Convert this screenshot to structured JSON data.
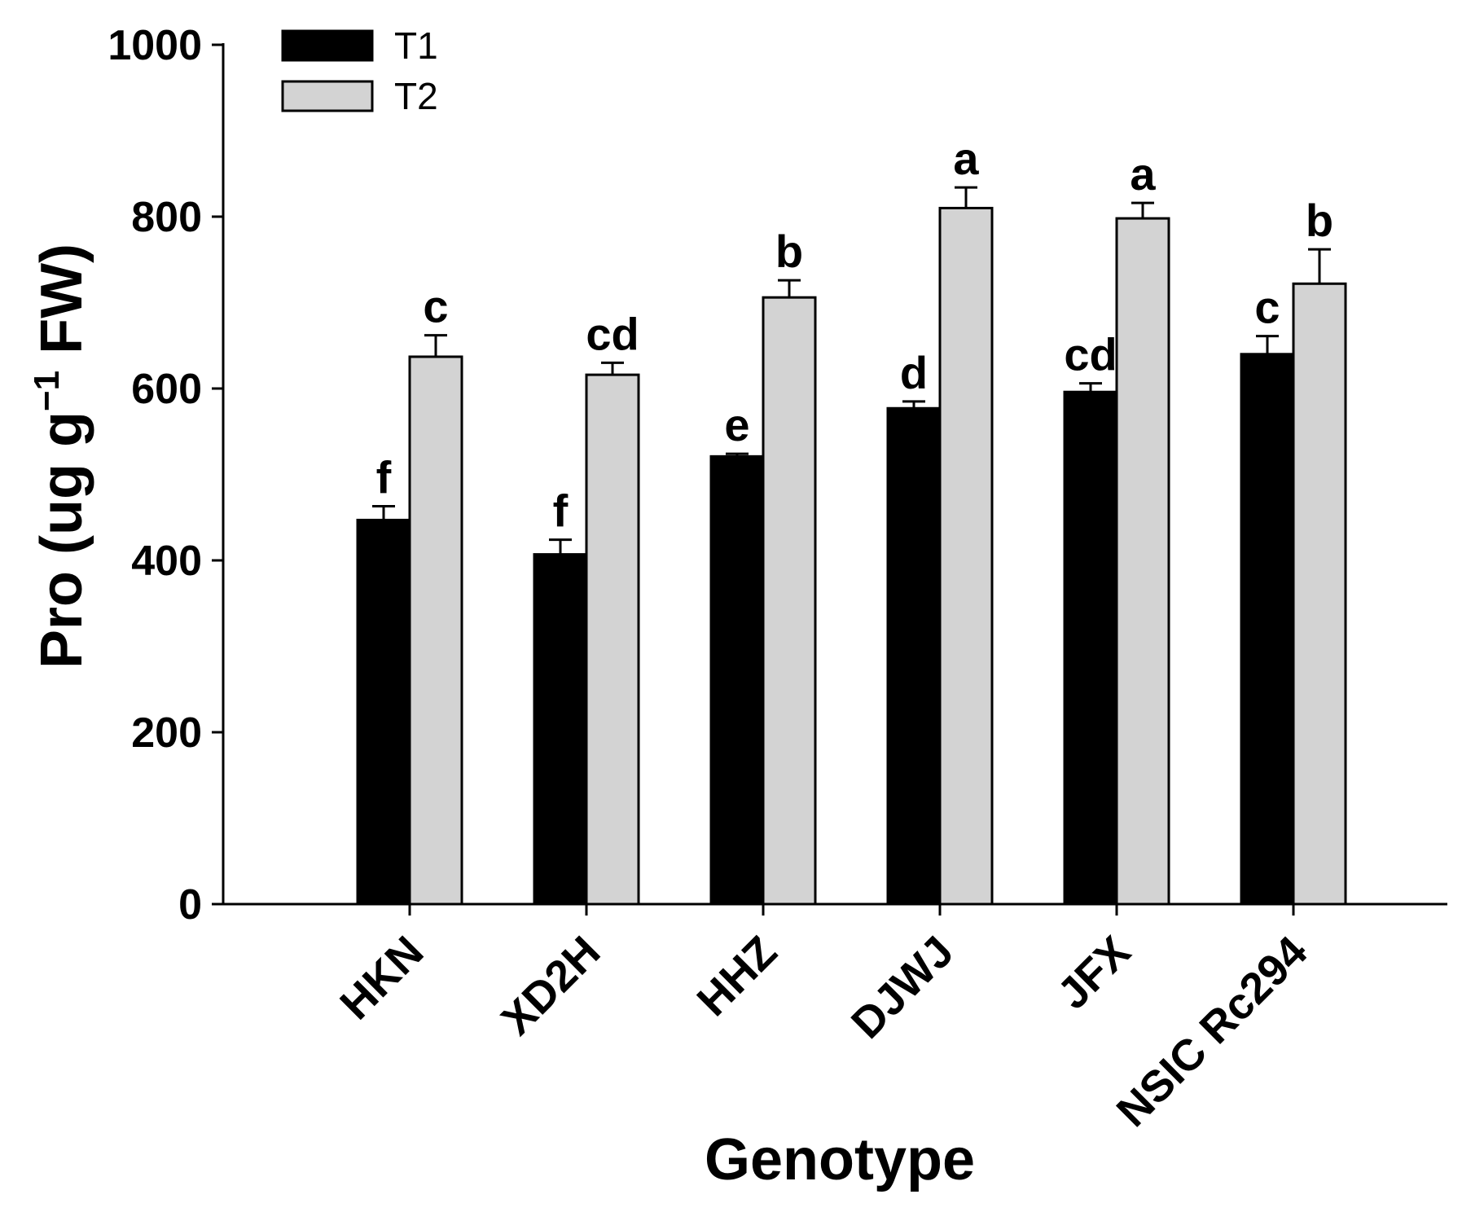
{
  "chart_data": {
    "type": "bar",
    "title": "",
    "xlabel": "Genotype",
    "ylabel": "Pro (ug g",
    "ylabel_superscript": "−1",
    "ylabel_suffix": " FW)",
    "ylim": [
      0,
      1000
    ],
    "yticks": [
      0,
      200,
      400,
      600,
      800,
      1000
    ],
    "ytick_labels": [
      "0",
      "200",
      "400",
      "600",
      "800",
      "1000"
    ],
    "categories": [
      "HKN",
      "XD2H",
      "HHZ",
      "DJWJ",
      "JFX",
      "NSIC Rc294"
    ],
    "legend_position": "top-left",
    "series": [
      {
        "name": "T1",
        "color": "#000000",
        "values": [
          447,
          407,
          521,
          577,
          596,
          640
        ],
        "errors": [
          16,
          17,
          3,
          8,
          10,
          21
        ],
        "letters": [
          "f",
          "f",
          "e",
          "d",
          "cd",
          "c"
        ]
      },
      {
        "name": "T2",
        "color": "#d3d3d3",
        "values": [
          637,
          616,
          706,
          810,
          798,
          722
        ],
        "errors": [
          25,
          14,
          20,
          24,
          18,
          40
        ],
        "letters": [
          "c",
          "cd",
          "b",
          "a",
          "a",
          "b"
        ]
      }
    ]
  }
}
